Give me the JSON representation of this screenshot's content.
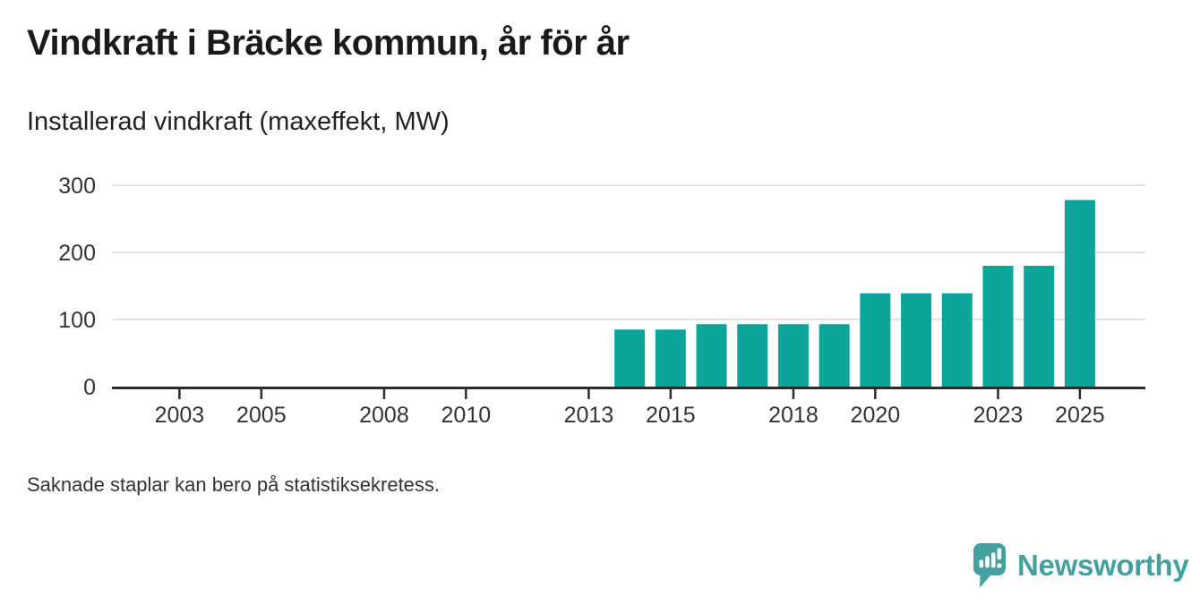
{
  "chart_data": {
    "type": "bar",
    "title": "Vindkraft i Bräcke kommun, år för år",
    "subtitle": "Installerad vindkraft (maxeffekt, MW)",
    "xlabel": "",
    "ylabel": "maxeffekt, MW",
    "x": [
      2014,
      2015,
      2016,
      2017,
      2018,
      2019,
      2020,
      2021,
      2022,
      2023,
      2024,
      2025
    ],
    "values": [
      85,
      85,
      93,
      93,
      93,
      93,
      139,
      139,
      139,
      180,
      180,
      278
    ],
    "x_ticks": [
      2003,
      2005,
      2008,
      2010,
      2013,
      2015,
      2018,
      2020,
      2023,
      2025
    ],
    "y_ticks": [
      0,
      100,
      200,
      300
    ],
    "xlim": [
      2001.35,
      2026.6
    ],
    "ylim": [
      0,
      300
    ],
    "grid": "horizontal",
    "legend": "none",
    "missing_years_note": "no bars shown before 2014",
    "colors": {
      "bar": "#0aa69b",
      "axis": "#2d2d2d",
      "gridline": "#e2e2e2",
      "tick_label": "#333333"
    }
  },
  "footnote": {
    "text": "Saknade staplar kan bero på statistiksekretess."
  },
  "branding": {
    "name": "Newsworthy",
    "color": "#44a1a0",
    "icon": "speech-bubble-bar-chart-icon"
  }
}
